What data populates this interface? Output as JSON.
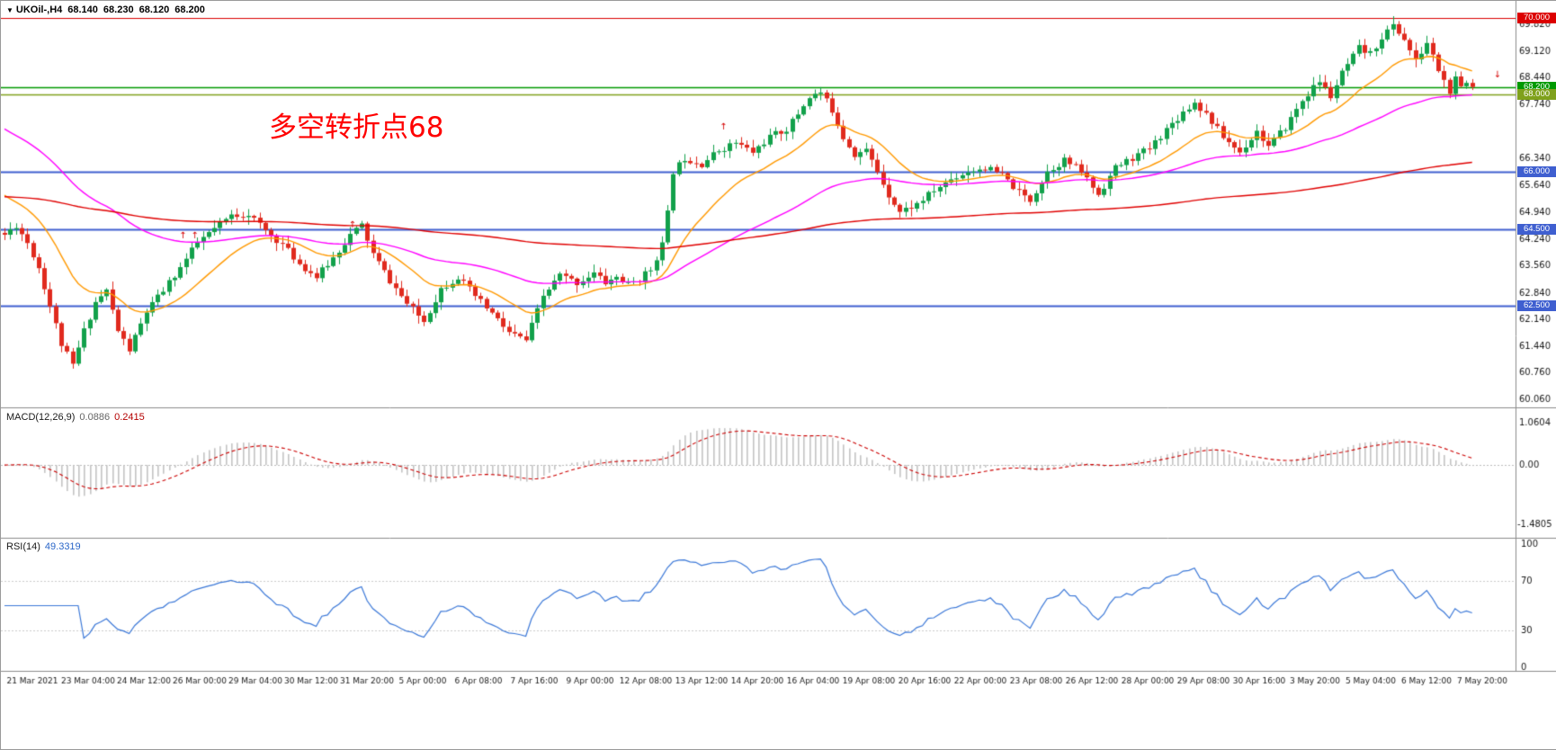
{
  "title": {
    "icon": "▼",
    "symbol": "UKOil-,H4",
    "open": "68.140",
    "high": "68.230",
    "low": "68.120",
    "close": "68.200"
  },
  "annotation": {
    "text": "多空转折点68",
    "color": "#FF0000"
  },
  "colors": {
    "background": "#FFFFFF",
    "up": "#12A14B",
    "down": "#E02A1E",
    "axis_text": "#1A1A1A",
    "separator": "#8C8C8C"
  },
  "main_chart": {
    "price_ticks": [
      "69.820",
      "69.120",
      "68.440",
      "67.740",
      "66.340",
      "65.640",
      "64.940",
      "64.240",
      "63.560",
      "62.840",
      "62.140",
      "61.440",
      "60.760",
      "60.060"
    ],
    "hlines": [
      {
        "price": 70.0,
        "label": "70.000",
        "color": "#DC0000",
        "width": 1.2
      },
      {
        "price": 68.2,
        "label": "68.200",
        "color": "#009900",
        "width": 1.5
      },
      {
        "price": 68.0,
        "label": "68.000",
        "color": "#7FA11C",
        "width": 1.5
      },
      {
        "price": 66.0,
        "label": "66.000",
        "color": "#3F5FD0",
        "width": 2
      },
      {
        "price": 64.5,
        "label": "64.500",
        "color": "#3F5FD0",
        "width": 2
      },
      {
        "price": 62.5,
        "label": "62.500",
        "color": "#3F5FD0",
        "width": 2
      }
    ]
  },
  "macd_panel": {
    "label": "MACD(12,26,9)",
    "value_main": "0.0886",
    "value_signal": "0.2415",
    "axis_max": "1.0604",
    "axis_zero": "0.00",
    "axis_min": "-1.4805",
    "hist_color": "#C4C4C4",
    "signal_color": "#CC0000"
  },
  "rsi_panel": {
    "label": "RSI(14)",
    "value": "49.3319",
    "axis": [
      "100",
      "70",
      "30",
      "0"
    ],
    "levels": [
      70,
      30
    ],
    "line_color": "#3B78D8"
  },
  "time_axis": {
    "labels": [
      "21 Mar 2021",
      "23 Mar 04:00",
      "24 Mar 12:00",
      "26 Mar 00:00",
      "29 Mar 04:00",
      "30 Mar 12:00",
      "31 Mar 20:00",
      "5 Apr 00:00",
      "6 Apr 08:00",
      "7 Apr 16:00",
      "9 Apr 00:00",
      "12 Apr 08:00",
      "13 Apr 12:00",
      "14 Apr 20:00",
      "16 Apr 04:00",
      "19 Apr 08:00",
      "20 Apr 16:00",
      "22 Apr 00:00",
      "23 Apr 08:00",
      "26 Apr 12:00",
      "28 Apr 00:00",
      "29 Apr 08:00",
      "30 Apr 16:00",
      "3 May 20:00",
      "5 May 04:00",
      "6 May 12:00",
      "7 May 20:00"
    ]
  },
  "chart_data": {
    "type": "candlestick",
    "symbol": "UKOil-",
    "timeframe": "H4",
    "current_ohlc": {
      "open": 68.14,
      "high": 68.23,
      "low": 68.12,
      "close": 68.2
    },
    "price_axis_range": [
      59.95,
      70.3
    ],
    "n_candles": 260,
    "last_close": 68.2,
    "jitter": 0.09,
    "wick": 0.18,
    "seed": 11,
    "keypoint_index": [
      0,
      2,
      4,
      6,
      8,
      10,
      12,
      14,
      16,
      18,
      20,
      22,
      25,
      28,
      31,
      34,
      37,
      40,
      43,
      46,
      49,
      52,
      55,
      58,
      61,
      63,
      65,
      68,
      71,
      74,
      77,
      80,
      83,
      86,
      89,
      92,
      95,
      98,
      101,
      104,
      106,
      108,
      110,
      112,
      114,
      116,
      117,
      118,
      120,
      123,
      126,
      129,
      132,
      135,
      138,
      140,
      142,
      144,
      146,
      148,
      150,
      152,
      154,
      156,
      158,
      161,
      164,
      167,
      170,
      173,
      176,
      179,
      181,
      184,
      187,
      190,
      193,
      196,
      199,
      202,
      205,
      208,
      210,
      212,
      215,
      218,
      221,
      223,
      226,
      229,
      232,
      234,
      236,
      239,
      241,
      243,
      245,
      247,
      249,
      251,
      253,
      255,
      256,
      257,
      258,
      259
    ],
    "keypoint_price": [
      64.35,
      64.6,
      64.15,
      63.5,
      62.5,
      61.5,
      60.95,
      61.85,
      62.6,
      62.9,
      61.85,
      61.35,
      62.35,
      62.9,
      63.5,
      64.15,
      64.5,
      64.85,
      64.9,
      64.45,
      64.1,
      63.6,
      63.25,
      63.75,
      64.35,
      64.6,
      63.85,
      63.15,
      62.55,
      62.1,
      62.95,
      63.25,
      62.75,
      62.3,
      61.8,
      61.6,
      62.75,
      63.3,
      63.1,
      63.35,
      63.1,
      63.25,
      63.05,
      63.2,
      63.45,
      64.1,
      64.9,
      66.0,
      66.35,
      66.2,
      66.55,
      66.75,
      66.5,
      66.9,
      67.1,
      67.5,
      67.95,
      68.05,
      67.6,
      66.9,
      66.45,
      66.55,
      66.0,
      65.4,
      64.95,
      65.15,
      65.5,
      65.8,
      66.0,
      66.1,
      65.9,
      65.45,
      65.25,
      66.0,
      66.3,
      66.0,
      65.4,
      66.1,
      66.35,
      66.6,
      67.1,
      67.55,
      67.8,
      67.5,
      66.9,
      66.5,
      67.05,
      66.65,
      67.15,
      67.85,
      68.35,
      67.95,
      68.55,
      69.2,
      69.05,
      69.5,
      69.8,
      69.45,
      68.85,
      69.35,
      68.65,
      68.05,
      68.4,
      68.15,
      68.3,
      68.2
    ],
    "moving_averages": [
      {
        "name": "ma-fast",
        "color": "#FF9900",
        "period": 18,
        "init": 65.5
      },
      {
        "name": "ma-mid",
        "color": "#FF00FF",
        "period": 60,
        "init": 67.2
      },
      {
        "name": "ma-slow",
        "color": "#E00000",
        "period": 240,
        "init": 65.35
      }
    ],
    "indicators": {
      "macd": {
        "params": [
          12,
          26,
          9
        ],
        "current_main": 0.0886,
        "current_signal": 0.2415,
        "axis": [
          1.0604,
          0.0,
          -1.4805
        ]
      },
      "rsi": {
        "period": 14,
        "current": 49.3319,
        "axis": [
          100,
          70,
          30,
          0
        ]
      }
    },
    "markers": [
      {
        "frac": 0.12,
        "price": 64.25,
        "glyph": "↑",
        "color": "#D40000"
      },
      {
        "frac": 0.128,
        "price": 64.25,
        "glyph": "↑",
        "color": "#D40000"
      },
      {
        "frac": 0.232,
        "price": 64.55,
        "glyph": "↑",
        "color": "#D40000"
      },
      {
        "frac": 0.381,
        "price": 63.05,
        "glyph": "↑",
        "color": "#D40000"
      },
      {
        "frac": 0.477,
        "price": 67.1,
        "glyph": "↑",
        "color": "#D40000"
      },
      {
        "frac": 0.988,
        "price": 68.45,
        "glyph": "↓",
        "color": "#D40000"
      }
    ]
  }
}
